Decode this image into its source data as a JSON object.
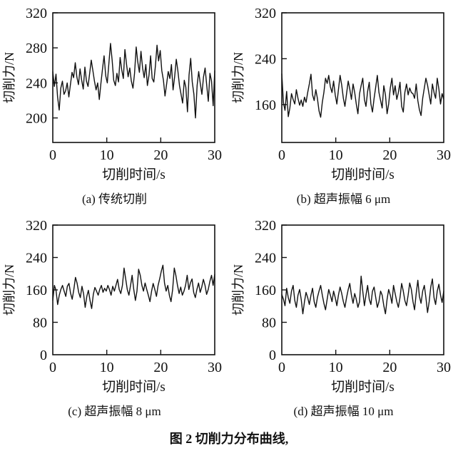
{
  "figure": {
    "caption": "图 2 切削力分布曲线,"
  },
  "chart_data": [
    {
      "type": "line",
      "caption": "(a) 传统切削",
      "xlabel": "切削时间/s",
      "ylabel": "切削力/N",
      "xlim": [
        0,
        30
      ],
      "ylim": [
        172,
        320
      ],
      "xticks": [
        0,
        10,
        20,
        30
      ],
      "yticks": [
        200,
        240,
        280,
        320
      ],
      "line_color": "#111111",
      "grid": false,
      "values": [
        253,
        236,
        250,
        224,
        209,
        234,
        242,
        227,
        231,
        240,
        224,
        238,
        252,
        246,
        263,
        247,
        238,
        256,
        243,
        233,
        258,
        242,
        236,
        251,
        266,
        254,
        242,
        232,
        240,
        221,
        239,
        256,
        271,
        248,
        240,
        263,
        285,
        266,
        243,
        237,
        251,
        241,
        269,
        255,
        245,
        278,
        261,
        247,
        257,
        242,
        234,
        251,
        281,
        264,
        252,
        276,
        257,
        246,
        261,
        237,
        249,
        271,
        245,
        241,
        259,
        283,
        265,
        277,
        254,
        243,
        225,
        239,
        253,
        245,
        261,
        232,
        247,
        267,
        254,
        237,
        227,
        217,
        243,
        235,
        207,
        249,
        268,
        241,
        227,
        200,
        237,
        253,
        239,
        227,
        247,
        257,
        237,
        219,
        251,
        242,
        214,
        254
      ]
    },
    {
      "type": "line",
      "caption": "(b) 超声振幅 6 μm",
      "xlabel": "切削时间/s",
      "ylabel": "切削力/N",
      "xlim": [
        0,
        30
      ],
      "ylim": [
        94,
        320
      ],
      "xticks": [
        0,
        10,
        20,
        30
      ],
      "yticks": [
        160,
        240,
        320
      ],
      "line_color": "#111111",
      "grid": false,
      "values": [
        214,
        163,
        150,
        183,
        139,
        154,
        179,
        169,
        161,
        186,
        171,
        159,
        168,
        157,
        173,
        164,
        181,
        196,
        213,
        177,
        167,
        186,
        171,
        149,
        138,
        164,
        181,
        206,
        197,
        211,
        191,
        181,
        201,
        177,
        161,
        186,
        211,
        194,
        171,
        157,
        179,
        201,
        187,
        169,
        196,
        181,
        161,
        144,
        179,
        193,
        206,
        169,
        157,
        183,
        199,
        161,
        147,
        171,
        191,
        211,
        181,
        167,
        154,
        193,
        177,
        144,
        161,
        189,
        206,
        177,
        193,
        169,
        181,
        199,
        157,
        147,
        181,
        196,
        177,
        189,
        181,
        179,
        171,
        196,
        167,
        151,
        141,
        171,
        189,
        206,
        194,
        177,
        161,
        196,
        181,
        171,
        206,
        187,
        161,
        179,
        169
      ]
    },
    {
      "type": "line",
      "caption": "(c) 超声振幅 8 μm",
      "xlabel": "切削时间/s",
      "ylabel": "切削力/N",
      "xlim": [
        0,
        30
      ],
      "ylim": [
        0,
        320
      ],
      "xticks": [
        0,
        10,
        20,
        30
      ],
      "yticks": [
        0,
        80,
        160,
        240,
        320
      ],
      "line_color": "#111111",
      "grid": false,
      "values": [
        134,
        171,
        159,
        124,
        147,
        161,
        171,
        157,
        144,
        169,
        176,
        151,
        137,
        161,
        191,
        177,
        154,
        141,
        169,
        151,
        117,
        144,
        159,
        134,
        114,
        149,
        166,
        157,
        147,
        161,
        171,
        154,
        164,
        157,
        171,
        161,
        147,
        169,
        157,
        171,
        186,
        161,
        151,
        171,
        214,
        187,
        161,
        147,
        171,
        196,
        161,
        134,
        157,
        211,
        196,
        171,
        157,
        177,
        161,
        147,
        131,
        157,
        176,
        161,
        144,
        171,
        187,
        206,
        221,
        177,
        157,
        171,
        147,
        131,
        161,
        214,
        196,
        171,
        151,
        167,
        147,
        157,
        171,
        196,
        161,
        177,
        187,
        154,
        141,
        161,
        177,
        154,
        167,
        186,
        171,
        149,
        161,
        181,
        196,
        171,
        199
      ]
    },
    {
      "type": "line",
      "caption": "(d) 超声振幅 10 μm",
      "xlabel": "切削时间/s",
      "ylabel": "切削力/N",
      "xlim": [
        0,
        30
      ],
      "ylim": [
        0,
        320
      ],
      "xticks": [
        0,
        10,
        20,
        30
      ],
      "yticks": [
        0,
        80,
        160,
        240,
        320
      ],
      "line_color": "#111111",
      "grid": false,
      "values": [
        149,
        137,
        121,
        164,
        141,
        127,
        157,
        171,
        134,
        117,
        147,
        161,
        137,
        101,
        131,
        154,
        141,
        124,
        147,
        164,
        131,
        117,
        141,
        157,
        171,
        147,
        127,
        111,
        137,
        161,
        147,
        131,
        157,
        141,
        121,
        147,
        167,
        151,
        131,
        117,
        141,
        161,
        176,
        147,
        127,
        151,
        137,
        117,
        131,
        194,
        157,
        121,
        147,
        171,
        137,
        124,
        157,
        167,
        141,
        117,
        131,
        157,
        147,
        121,
        101,
        137,
        161,
        147,
        127,
        171,
        151,
        131,
        117,
        141,
        176,
        157,
        134,
        121,
        147,
        177,
        161,
        131,
        111,
        151,
        184,
        144,
        127,
        157,
        171,
        141,
        104,
        131,
        167,
        187,
        141,
        124,
        157,
        174,
        147,
        129,
        157
      ]
    }
  ]
}
